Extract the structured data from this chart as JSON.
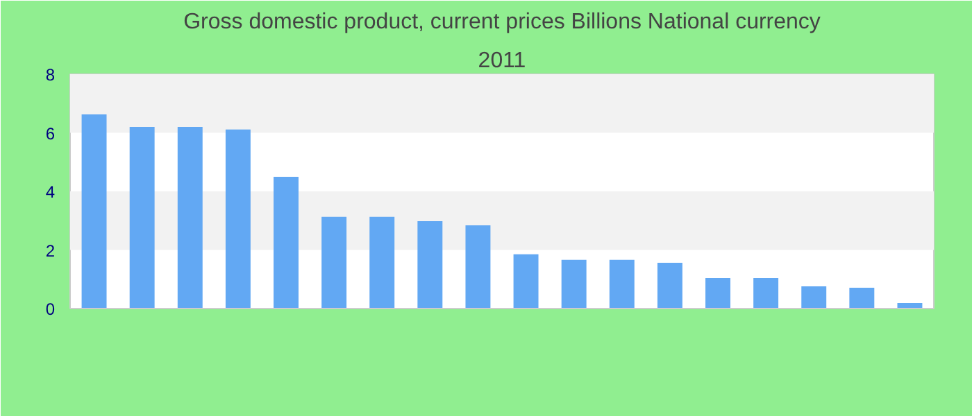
{
  "chart_data": {
    "type": "bar",
    "title": "Gross domestic product, current prices Billions National currency",
    "subtitle": "2011",
    "categories": [
      null,
      null,
      null,
      null,
      null,
      null,
      null,
      null,
      null,
      null,
      null,
      null,
      null,
      null,
      null,
      null,
      null,
      null
    ],
    "values": [
      6.63,
      6.2,
      6.2,
      6.11,
      4.5,
      3.13,
      3.13,
      2.98,
      2.84,
      1.85,
      1.66,
      1.66,
      1.56,
      1.04,
      1.04,
      0.76,
      0.71,
      0.19
    ],
    "color": "#62a8f3",
    "ylim": [
      0,
      8
    ],
    "yticks": [
      0,
      2,
      4,
      6,
      8
    ],
    "bands": [
      {
        "axis": "y",
        "from": 2,
        "to": 4,
        "color": "#f2f2f2"
      },
      {
        "axis": "y",
        "from": 6,
        "to": 8,
        "color": "#f2f2f2"
      }
    ]
  }
}
